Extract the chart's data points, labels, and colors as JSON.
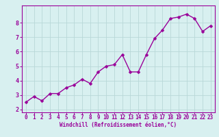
{
  "x": [
    0,
    1,
    2,
    3,
    4,
    5,
    6,
    7,
    8,
    9,
    10,
    11,
    12,
    13,
    14,
    15,
    16,
    17,
    18,
    19,
    20,
    21,
    22,
    23
  ],
  "y": [
    2.5,
    2.9,
    2.6,
    3.1,
    3.1,
    3.5,
    3.7,
    4.1,
    3.8,
    4.6,
    5.0,
    5.1,
    5.8,
    4.6,
    4.6,
    5.8,
    6.9,
    7.5,
    8.3,
    8.4,
    8.6,
    8.3,
    7.4,
    7.8
  ],
  "line_color": "#990099",
  "marker_color": "#990099",
  "bg_color": "#d8f0f0",
  "grid_color": "#b8d8d8",
  "axis_label_color": "#990099",
  "tick_color": "#990099",
  "spine_color": "#888888",
  "xlabel": "Windchill (Refroidissement éolien,°C)",
  "xlim": [
    -0.5,
    23.5
  ],
  "ylim": [
    1.8,
    9.2
  ],
  "yticks": [
    2,
    3,
    4,
    5,
    6,
    7,
    8
  ],
  "xticks": [
    0,
    1,
    2,
    3,
    4,
    5,
    6,
    7,
    8,
    9,
    10,
    11,
    12,
    13,
    14,
    15,
    16,
    17,
    18,
    19,
    20,
    21,
    22,
    23
  ],
  "marker_size": 2.5,
  "line_width": 1.0,
  "tick_fontsize": 5.5,
  "xlabel_fontsize": 5.5
}
